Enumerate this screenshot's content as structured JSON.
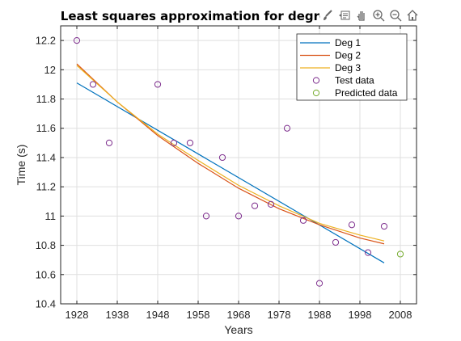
{
  "toolbar": {
    "icons": [
      "brush-icon",
      "data-tips-icon",
      "pan-icon",
      "zoom-in-icon",
      "zoom-out-icon",
      "home-icon"
    ]
  },
  "chart_data": {
    "type": "line",
    "title": "Least squares approximation for degre",
    "xlabel": "Years",
    "ylabel": "Time (s)",
    "xlim": [
      1924,
      2012
    ],
    "ylim": [
      10.4,
      12.3
    ],
    "xticks": [
      1928,
      1938,
      1948,
      1958,
      1968,
      1978,
      1988,
      1998,
      2008
    ],
    "yticks": [
      10.4,
      10.6,
      10.8,
      11,
      11.2,
      11.4,
      11.6,
      11.8,
      12,
      12.2
    ],
    "ytick_labels": [
      "10.4",
      "10.6",
      "10.8",
      "11",
      "11.2",
      "11.4",
      "11.6",
      "11.8",
      "12",
      "12.2"
    ],
    "grid": true,
    "legend_position": "top-right",
    "series": [
      {
        "name": "Deg 1",
        "style": "line",
        "color": "#0072BD",
        "x": [
          1928,
          2004
        ],
        "y": [
          11.91,
          10.68
        ]
      },
      {
        "name": "Deg 2",
        "style": "line",
        "color": "#D95319",
        "x": [
          1928,
          1938,
          1948,
          1958,
          1968,
          1978,
          1988,
          1998,
          2004
        ],
        "y": [
          12.04,
          11.78,
          11.55,
          11.36,
          11.19,
          11.05,
          10.94,
          10.85,
          10.81
        ]
      },
      {
        "name": "Deg 3",
        "style": "line",
        "color": "#EDB120",
        "x": [
          1928,
          1938,
          1948,
          1958,
          1968,
          1978,
          1988,
          1998,
          2004
        ],
        "y": [
          12.03,
          11.78,
          11.56,
          11.38,
          11.21,
          11.07,
          10.95,
          10.87,
          10.83
        ]
      },
      {
        "name": "Test data",
        "style": "marker",
        "color": "#7E2F8E",
        "x": [
          1928,
          1932,
          1936,
          1948,
          1952,
          1956,
          1960,
          1964,
          1968,
          1972,
          1976,
          1980,
          1984,
          1988,
          1992,
          1996,
          2000,
          2004
        ],
        "y": [
          12.2,
          11.9,
          11.5,
          11.9,
          11.5,
          11.5,
          11.0,
          11.4,
          11.0,
          11.07,
          11.08,
          11.6,
          10.97,
          10.54,
          10.82,
          10.94,
          10.75,
          10.93
        ]
      },
      {
        "name": "Predicted data",
        "style": "marker",
        "color": "#77AC30",
        "x": [
          2008
        ],
        "y": [
          10.74
        ]
      }
    ]
  }
}
